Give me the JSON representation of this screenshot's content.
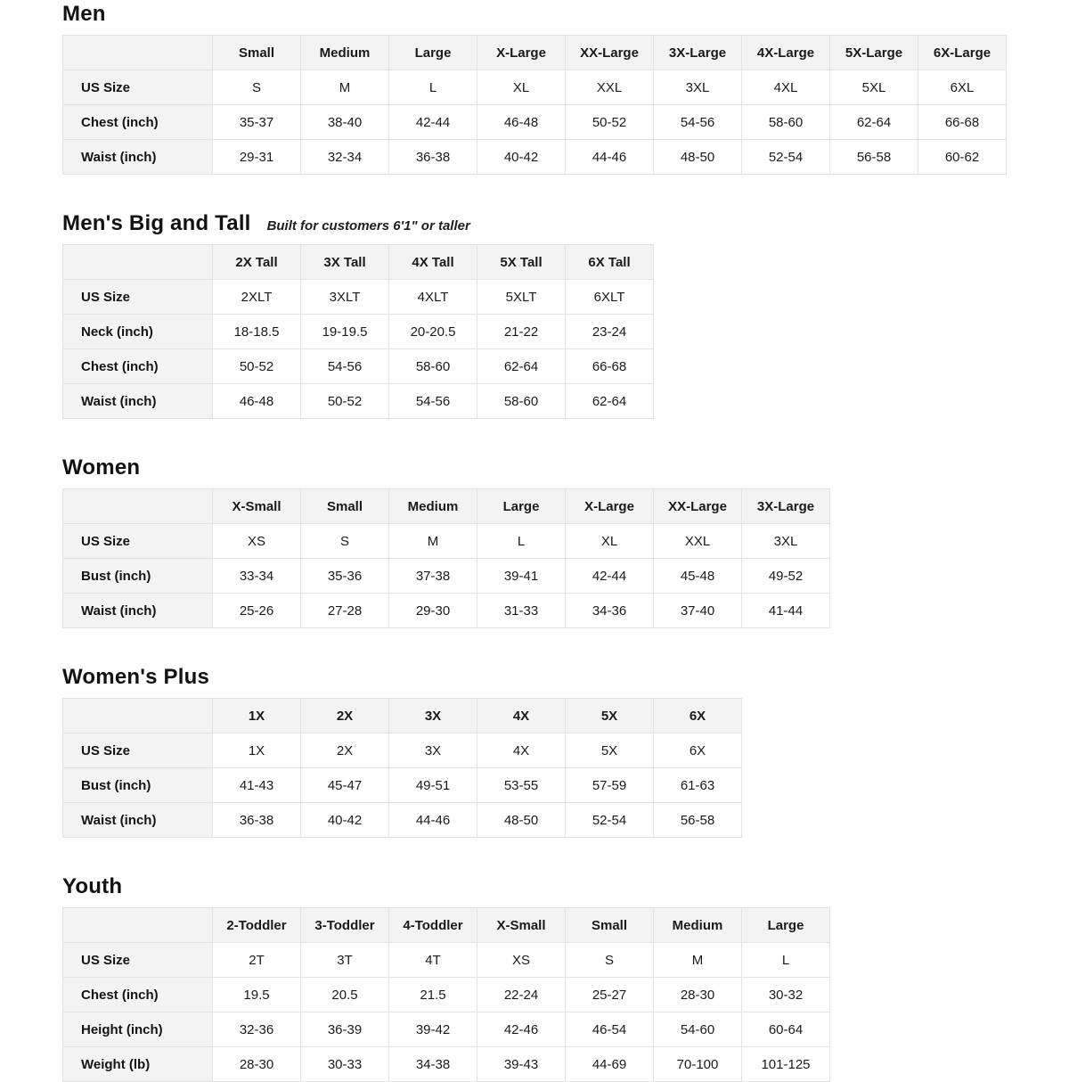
{
  "palette": {
    "page_bg": "#ffffff",
    "header_bg": "#f3f3f3",
    "border": "#e2e2e2",
    "text": "#141414"
  },
  "sections": [
    {
      "title": "Men",
      "subtitle": "",
      "columns": [
        "Small",
        "Medium",
        "Large",
        "X-Large",
        "XX-Large",
        "3X-Large",
        "4X-Large",
        "5X-Large",
        "6X-Large"
      ],
      "rows": [
        {
          "label": "US Size",
          "values": [
            "S",
            "M",
            "L",
            "XL",
            "XXL",
            "3XL",
            "4XL",
            "5XL",
            "6XL"
          ]
        },
        {
          "label": "Chest (inch)",
          "values": [
            "35-37",
            "38-40",
            "42-44",
            "46-48",
            "50-52",
            "54-56",
            "58-60",
            "62-64",
            "66-68"
          ]
        },
        {
          "label": "Waist (inch)",
          "values": [
            "29-31",
            "32-34",
            "36-38",
            "40-42",
            "44-46",
            "48-50",
            "52-54",
            "56-58",
            "60-62"
          ]
        }
      ]
    },
    {
      "title": "Men's Big and Tall",
      "subtitle": "Built for customers 6'1\" or taller",
      "columns": [
        "2X Tall",
        "3X Tall",
        "4X Tall",
        "5X Tall",
        "6X Tall"
      ],
      "rows": [
        {
          "label": "US Size",
          "values": [
            "2XLT",
            "3XLT",
            "4XLT",
            "5XLT",
            "6XLT"
          ]
        },
        {
          "label": "Neck (inch)",
          "values": [
            "18-18.5",
            "19-19.5",
            "20-20.5",
            "21-22",
            "23-24"
          ]
        },
        {
          "label": "Chest (inch)",
          "values": [
            "50-52",
            "54-56",
            "58-60",
            "62-64",
            "66-68"
          ]
        },
        {
          "label": "Waist (inch)",
          "values": [
            "46-48",
            "50-52",
            "54-56",
            "58-60",
            "62-64"
          ]
        }
      ]
    },
    {
      "title": "Women",
      "subtitle": "",
      "columns": [
        "X-Small",
        "Small",
        "Medium",
        "Large",
        "X-Large",
        "XX-Large",
        "3X-Large"
      ],
      "rows": [
        {
          "label": "US Size",
          "values": [
            "XS",
            "S",
            "M",
            "L",
            "XL",
            "XXL",
            "3XL"
          ]
        },
        {
          "label": "Bust (inch)",
          "values": [
            "33-34",
            "35-36",
            "37-38",
            "39-41",
            "42-44",
            "45-48",
            "49-52"
          ]
        },
        {
          "label": "Waist (inch)",
          "values": [
            "25-26",
            "27-28",
            "29-30",
            "31-33",
            "34-36",
            "37-40",
            "41-44"
          ]
        }
      ]
    },
    {
      "title": "Women's Plus",
      "subtitle": "",
      "columns": [
        "1X",
        "2X",
        "3X",
        "4X",
        "5X",
        "6X"
      ],
      "rows": [
        {
          "label": "US Size",
          "values": [
            "1X",
            "2X",
            "3X",
            "4X",
            "5X",
            "6X"
          ]
        },
        {
          "label": "Bust (inch)",
          "values": [
            "41-43",
            "45-47",
            "49-51",
            "53-55",
            "57-59",
            "61-63"
          ]
        },
        {
          "label": "Waist (inch)",
          "values": [
            "36-38",
            "40-42",
            "44-46",
            "48-50",
            "52-54",
            "56-58"
          ]
        }
      ]
    },
    {
      "title": "Youth",
      "subtitle": "",
      "columns": [
        "2-Toddler",
        "3-Toddler",
        "4-Toddler",
        "X-Small",
        "Small",
        "Medium",
        "Large"
      ],
      "rows": [
        {
          "label": "US Size",
          "values": [
            "2T",
            "3T",
            "4T",
            "XS",
            "S",
            "M",
            "L"
          ]
        },
        {
          "label": "Chest (inch)",
          "values": [
            "19.5",
            "20.5",
            "21.5",
            "22-24",
            "25-27",
            "28-30",
            "30-32"
          ]
        },
        {
          "label": "Height (inch)",
          "values": [
            "32-36",
            "36-39",
            "39-42",
            "42-46",
            "46-54",
            "54-60",
            "60-64"
          ]
        },
        {
          "label": "Weight (lb)",
          "values": [
            "28-30",
            "30-33",
            "34-38",
            "39-43",
            "44-69",
            "70-100",
            "101-125"
          ]
        }
      ]
    }
  ]
}
